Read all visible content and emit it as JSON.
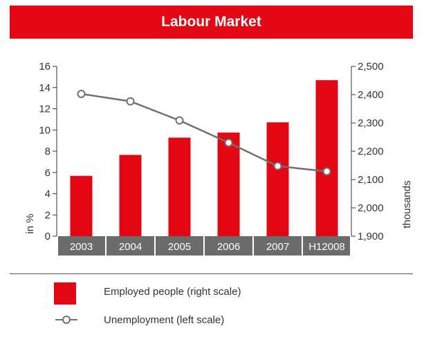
{
  "header": {
    "title": "Labour Market"
  },
  "colors": {
    "accent": "#e30613",
    "line": "#707070",
    "category_band": "#6b6b6b"
  },
  "legend": {
    "items": [
      {
        "label": "Employed people (right scale)",
        "marker": "bar"
      },
      {
        "label": "Unemployment (left scale)",
        "marker": "line-circle"
      }
    ]
  },
  "chart_data": {
    "type": "bar",
    "categories": [
      "2003",
      "2004",
      "2005",
      "2006",
      "2007",
      "H12008"
    ],
    "ylabel_left": "in %",
    "ylabel_right": "thousands",
    "ylim_left": [
      0,
      16
    ],
    "ylim_right": [
      1900,
      2500
    ],
    "left_ticks": [
      "0",
      "2",
      "4",
      "6",
      "8",
      "10",
      "12",
      "14",
      "16"
    ],
    "right_ticks": [
      "1,900",
      "2,000",
      "2,100",
      "2,200",
      "2,300",
      "2,400",
      "2,500"
    ],
    "grid": false,
    "series": [
      {
        "name": "Employed people (right scale)",
        "type": "bar",
        "axis": "right",
        "values": [
          2113,
          2187,
          2248,
          2266,
          2302,
          2451
        ]
      },
      {
        "name": "Unemployment (left scale)",
        "type": "line",
        "axis": "left",
        "values": [
          13.4,
          12.7,
          10.9,
          8.8,
          6.6,
          6.1
        ]
      }
    ]
  }
}
